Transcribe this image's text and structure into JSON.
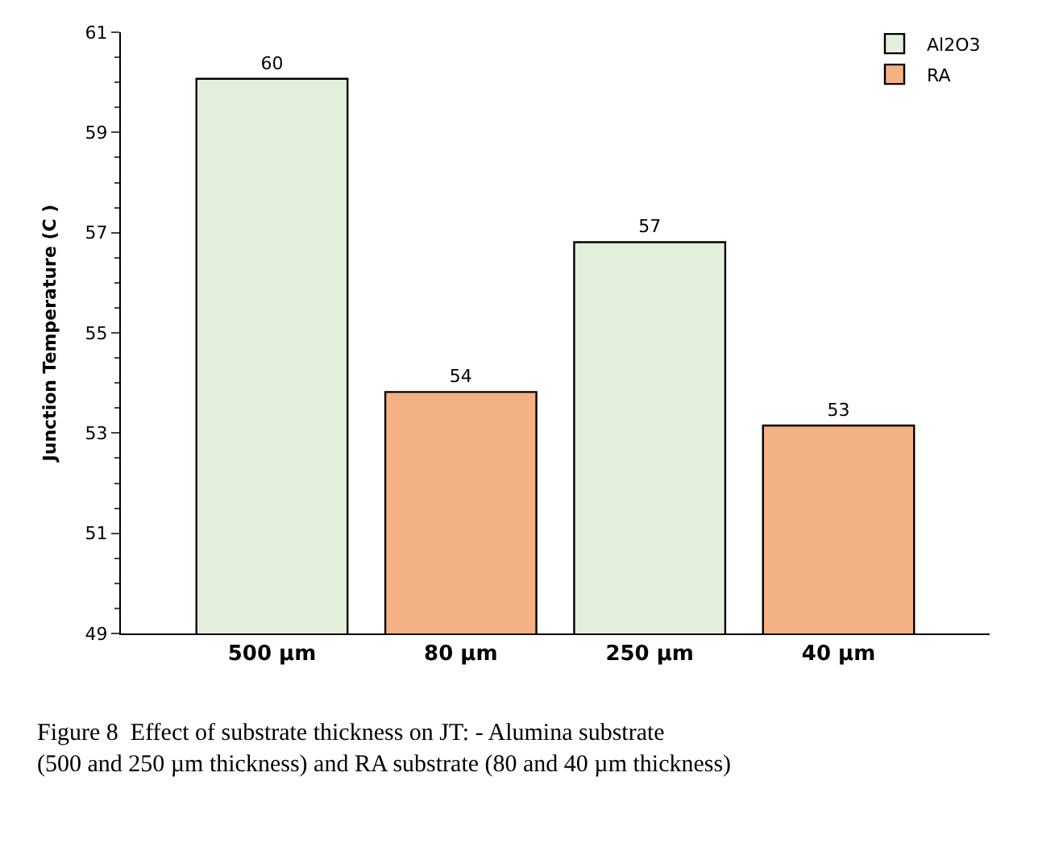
{
  "chart_data": {
    "type": "bar",
    "ylabel": "Junction Temperature (C )",
    "categories": [
      "500 µm",
      "80 µm",
      "250 µm",
      "40 µm"
    ],
    "series": [
      {
        "name": "Al2O3",
        "color": "#e2efda",
        "values": [
          60.07,
          null,
          56.81,
          null
        ],
        "value_labels": [
          "60",
          null,
          "57",
          null
        ]
      },
      {
        "name": "RA",
        "color": "#f4b183",
        "values": [
          null,
          53.82,
          null,
          53.15
        ],
        "value_labels": [
          null,
          "54",
          null,
          "53"
        ]
      }
    ],
    "ylim": [
      49,
      61
    ],
    "yticks": [
      49,
      51,
      53,
      55,
      57,
      59,
      61
    ],
    "legend": "top right",
    "annotations": [
      "Figure 8  Effect of substrate thickness on JT: - Alumina substrate (500 and 250 µm thickness) and RA substrate (80 and 40 µm thickness)"
    ]
  }
}
